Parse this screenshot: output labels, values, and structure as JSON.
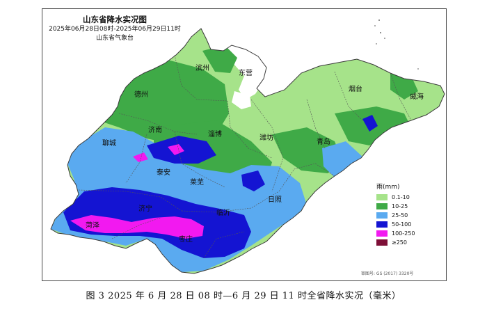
{
  "map": {
    "title": "山东省降水实况图",
    "period": "2025年06月28日08时-2025年06月29日11时",
    "issuer": "山东省气象台",
    "cities": [
      "滨州",
      "东营",
      "烟台",
      "威海",
      "德州",
      "济南",
      "淄博",
      "潍坊",
      "青岛",
      "聊城",
      "泰安",
      "莱芜",
      "日照",
      "济宁",
      "临沂",
      "菏泽",
      "枣庄"
    ],
    "legend": {
      "title": "雨(mm)",
      "items": [
        {
          "label": "0.1-10",
          "color": "#a6e38a"
        },
        {
          "label": "10-25",
          "color": "#3faa47"
        },
        {
          "label": "25-50",
          "color": "#5aaaf0"
        },
        {
          "label": "50-100",
          "color": "#1414d2"
        },
        {
          "label": "100-250",
          "color": "#f219f0"
        },
        {
          "label": "≥250",
          "color": "#7e0f37"
        }
      ]
    },
    "attribution": "审图号: GS (2017) 3320号"
  },
  "caption": "图 3  2025 年 6 月 28 日 08 时—6 月 29 日 11 时全省降水实况（毫米）"
}
